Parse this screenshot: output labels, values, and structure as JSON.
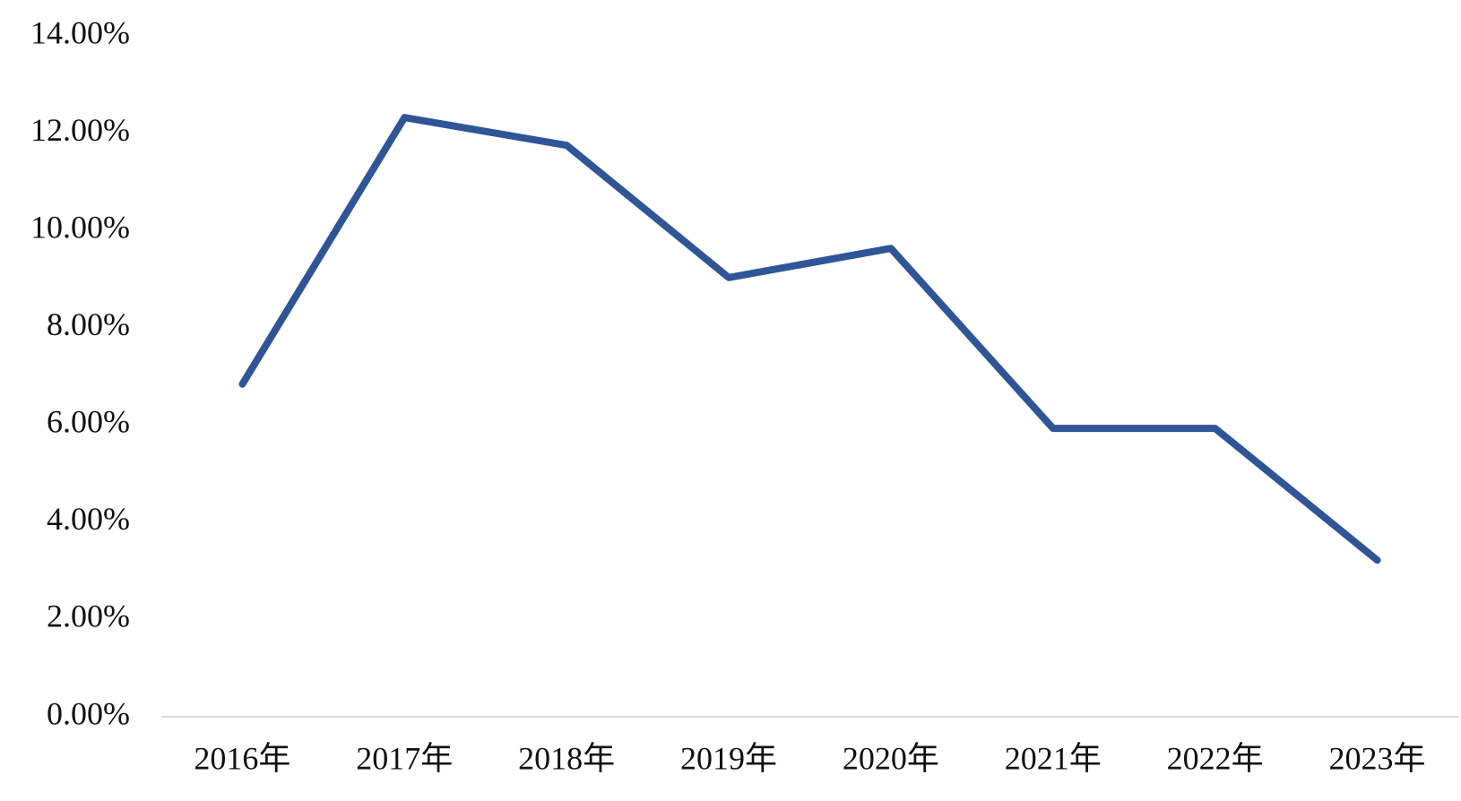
{
  "chart_data": {
    "type": "line",
    "categories": [
      "2016年",
      "2017年",
      "2018年",
      "2019年",
      "2020年",
      "2021年",
      "2022年",
      "2023年"
    ],
    "series": [
      {
        "color": "#2f5597",
        "values": [
          6.84,
          12.32,
          11.75,
          9.03,
          9.63,
          5.93,
          5.93,
          3.22
        ]
      }
    ],
    "ylim": [
      0,
      14
    ],
    "yticks": [
      {
        "value": 0,
        "label": "0.00%"
      },
      {
        "value": 2,
        "label": "2.00%"
      },
      {
        "value": 4,
        "label": "4.00%"
      },
      {
        "value": 6,
        "label": "6.00%"
      },
      {
        "value": 8,
        "label": "8.00%"
      },
      {
        "value": 10,
        "label": "10.00%"
      },
      {
        "value": 12,
        "label": "12.00%"
      },
      {
        "value": 14,
        "label": "14.00%"
      }
    ],
    "grid": false
  }
}
